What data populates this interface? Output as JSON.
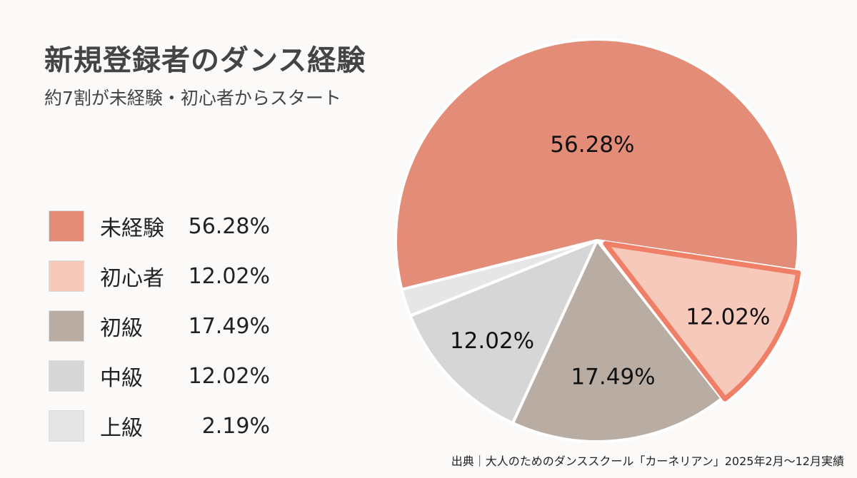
{
  "chart_data": {
    "type": "pie",
    "title": "新規登録者のダンス経験",
    "subtitle": "約7割が未経験・初心者からスタート",
    "legend_position": "left",
    "slices": [
      {
        "name": "未経験",
        "value": 56.28,
        "label": "56.28%",
        "color": "#e38c78"
      },
      {
        "name": "初心者",
        "value": 12.02,
        "label": "12.02%",
        "color": "#f6c9ba",
        "highlighted": true,
        "outline_color": "#f07f68"
      },
      {
        "name": "初級",
        "value": 17.49,
        "label": "17.49%",
        "color": "#b9aca3"
      },
      {
        "name": "中級",
        "value": 12.02,
        "label": "12.02%",
        "color": "#d6d6d6"
      },
      {
        "name": "上級",
        "value": 2.19,
        "label": "2.19%",
        "color": "#e6e6e6"
      }
    ],
    "source": "出典｜大人のためのダンススクール「カーネリアン」2025年2月〜12月実績"
  }
}
